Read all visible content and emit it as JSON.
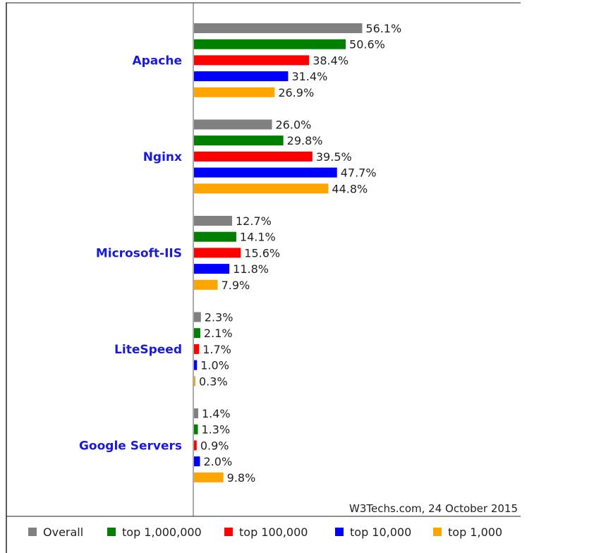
{
  "chart_data": {
    "type": "bar",
    "orientation": "horizontal",
    "categories": [
      "Apache",
      "Nginx",
      "Microsoft-IIS",
      "LiteSpeed",
      "Google Servers"
    ],
    "series": [
      {
        "name": "Overall",
        "color": "#808080",
        "values": [
          56.1,
          26.0,
          12.7,
          2.3,
          1.4
        ]
      },
      {
        "name": "top 1,000,000",
        "color": "#008000",
        "values": [
          50.6,
          29.8,
          14.1,
          2.1,
          1.3
        ]
      },
      {
        "name": "top 100,000",
        "color": "#ff0000",
        "values": [
          38.4,
          39.5,
          15.6,
          1.7,
          0.9
        ]
      },
      {
        "name": "top 10,000",
        "color": "#0000ff",
        "values": [
          31.4,
          47.7,
          11.8,
          1.0,
          2.0
        ]
      },
      {
        "name": "top 1,000",
        "color": "#ffa500",
        "values": [
          26.9,
          44.8,
          7.9,
          0.3,
          9.8
        ]
      }
    ],
    "value_labels": [
      [
        "56.1%",
        "26.0%",
        "12.7%",
        "2.3%",
        "1.4%"
      ],
      [
        "50.6%",
        "29.8%",
        "14.1%",
        "2.1%",
        "1.3%"
      ],
      [
        "38.4%",
        "39.5%",
        "15.6%",
        "1.7%",
        "0.9%"
      ],
      [
        "31.4%",
        "47.7%",
        "11.8%",
        "1.0%",
        "2.0%"
      ],
      [
        "26.9%",
        "44.8%",
        "7.9%",
        "0.3%",
        "9.8%"
      ]
    ],
    "unit": "%",
    "xlim": [
      0,
      100
    ],
    "grid": false,
    "legend": "bottom",
    "source": "W3Techs.com, 24 October 2015",
    "category_label_color": "#1a1adb"
  }
}
